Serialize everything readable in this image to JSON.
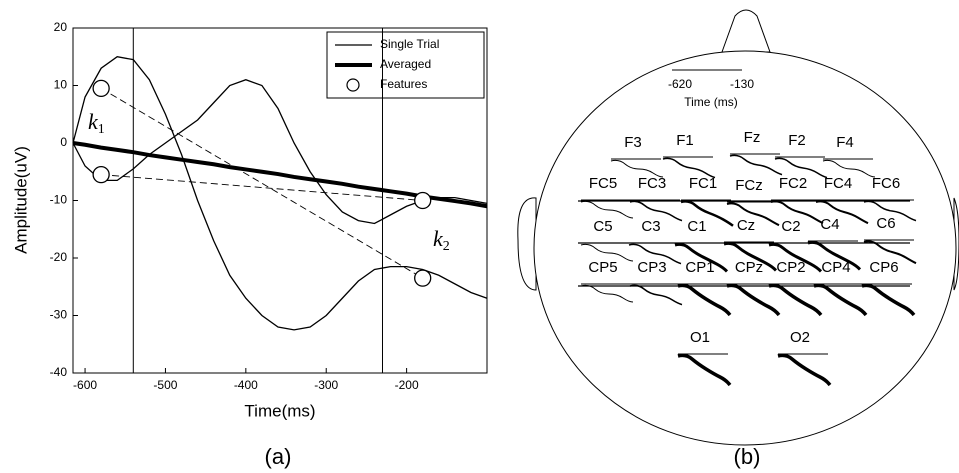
{
  "chart_data": {
    "type": "line",
    "xlabel": "Time(ms)",
    "ylabel": "Amplitude(uV)",
    "panel_label": "(a)",
    "xlim": [
      -615,
      -100
    ],
    "ylim": [
      -40,
      20
    ],
    "xticks": [
      -600,
      -500,
      -400,
      -300,
      -200
    ],
    "yticks": [
      -40,
      -30,
      -20,
      -10,
      0,
      10,
      20
    ],
    "vlines": [
      -540,
      -230
    ],
    "legend": "upper right",
    "x": [
      -615,
      -600,
      -580,
      -560,
      -540,
      -520,
      -500,
      -480,
      -460,
      -440,
      -420,
      -400,
      -380,
      -360,
      -340,
      -320,
      -300,
      -280,
      -260,
      -240,
      -220,
      -200,
      -180,
      -160,
      -140,
      -120,
      -100
    ],
    "series": [
      {
        "name": "Single Trial",
        "color": "#000000",
        "width": 1.3,
        "values": [
          0,
          8,
          13,
          15,
          14.5,
          11,
          5,
          -2,
          -10,
          -17,
          -23,
          -27,
          -30,
          -32,
          -32.5,
          -32,
          -30,
          -27,
          -24,
          -22,
          -21.5,
          -21.5,
          -22,
          -23,
          -24.5,
          -26,
          -27
        ]
      },
      {
        "color": "#000000",
        "width": 1.3,
        "values": [
          0,
          -4,
          -6.5,
          -6.5,
          -4.5,
          -2,
          0,
          2,
          4,
          7,
          10,
          11,
          10,
          6,
          0,
          -5,
          -9,
          -12,
          -13.5,
          -14,
          -12.5,
          -11,
          -10,
          -9.5,
          -9.5,
          -10,
          -10.5
        ]
      },
      {
        "name": "Averaged",
        "color": "#000000",
        "width": 4,
        "values": [
          0,
          -0.3,
          -0.8,
          -1.2,
          -1.6,
          -2.1,
          -2.5,
          -2.9,
          -3.3,
          -3.7,
          -4.2,
          -4.6,
          -5,
          -5.4,
          -5.9,
          -6.3,
          -6.7,
          -7.1,
          -7.6,
          -8,
          -8.4,
          -8.8,
          -9.3,
          -9.7,
          -10.1,
          -10.5,
          -11
        ]
      },
      {
        "name": "Features",
        "marker": "circle",
        "color": "#000000",
        "x": [
          -580,
          -580,
          -180,
          -180
        ],
        "values": [
          9.5,
          -5.5,
          -10,
          -23.5
        ]
      }
    ],
    "annotations": [
      {
        "text": "k",
        "sub": "1"
      },
      {
        "text": "k",
        "sub": "2"
      }
    ]
  },
  "head": {
    "panel_label": "(b)",
    "scale_start": "-620",
    "scale_end": "-130",
    "scale_title": "Time (ms)",
    "electrodes": [
      "F3",
      "F1",
      "Fz",
      "F2",
      "F4",
      "FC5",
      "FC3",
      "FC1",
      "FCz",
      "FC2",
      "FC4",
      "FC6",
      "C5",
      "C3",
      "C1",
      "Cz",
      "C2",
      "C4",
      "C6",
      "CP5",
      "CP3",
      "CP1",
      "CPz",
      "CP2",
      "CP4",
      "CP6",
      "O1",
      "O2"
    ]
  }
}
